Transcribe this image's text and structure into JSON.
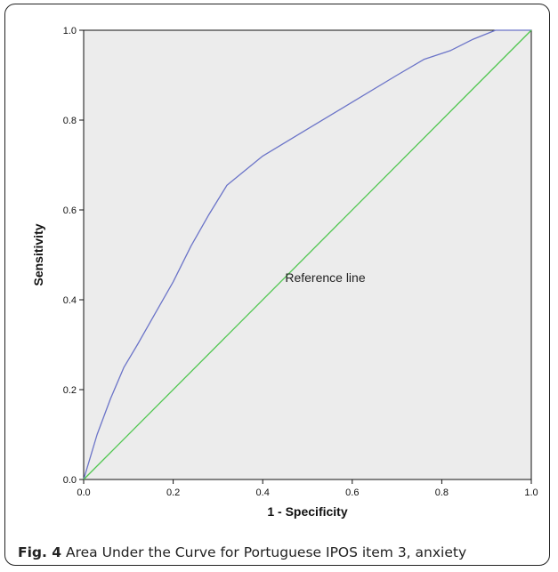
{
  "caption": {
    "label": "Fig. 4",
    "text": " Area Under the Curve for Portuguese IPOS item 3, anxiety"
  },
  "colors": {
    "plot_background": "#ececec",
    "roc_curve": "#6b74c8",
    "reference_line": "#4fc64f",
    "axis": "#111111"
  },
  "chart_data": {
    "type": "line",
    "xlabel": "1 - Specificity",
    "ylabel": "Sensitivity",
    "xlim": [
      0,
      1
    ],
    "ylim": [
      0,
      1
    ],
    "x_ticks": [
      "0.0",
      "0.2",
      "0.4",
      "0.6",
      "0.8",
      "1.0"
    ],
    "y_ticks": [
      "0.0",
      "0.2",
      "0.4",
      "0.6",
      "0.8",
      "1.0"
    ],
    "grid": false,
    "series": [
      {
        "role": "roc-curve",
        "x": [
          0.0,
          0.03,
          0.06,
          0.09,
          0.12,
          0.16,
          0.2,
          0.24,
          0.28,
          0.32,
          0.4,
          0.5,
          0.6,
          0.7,
          0.76,
          0.82,
          0.87,
          0.92,
          1.0
        ],
        "y": [
          0.0,
          0.1,
          0.18,
          0.25,
          0.3,
          0.37,
          0.44,
          0.52,
          0.59,
          0.655,
          0.72,
          0.78,
          0.84,
          0.9,
          0.935,
          0.955,
          0.98,
          1.0,
          1.0
        ]
      },
      {
        "role": "reference-line",
        "x": [
          0.0,
          1.0
        ],
        "y": [
          0.0,
          1.0
        ]
      }
    ],
    "annotations": [
      {
        "text": "Reference line",
        "x": 0.45,
        "y": 0.44
      }
    ]
  }
}
